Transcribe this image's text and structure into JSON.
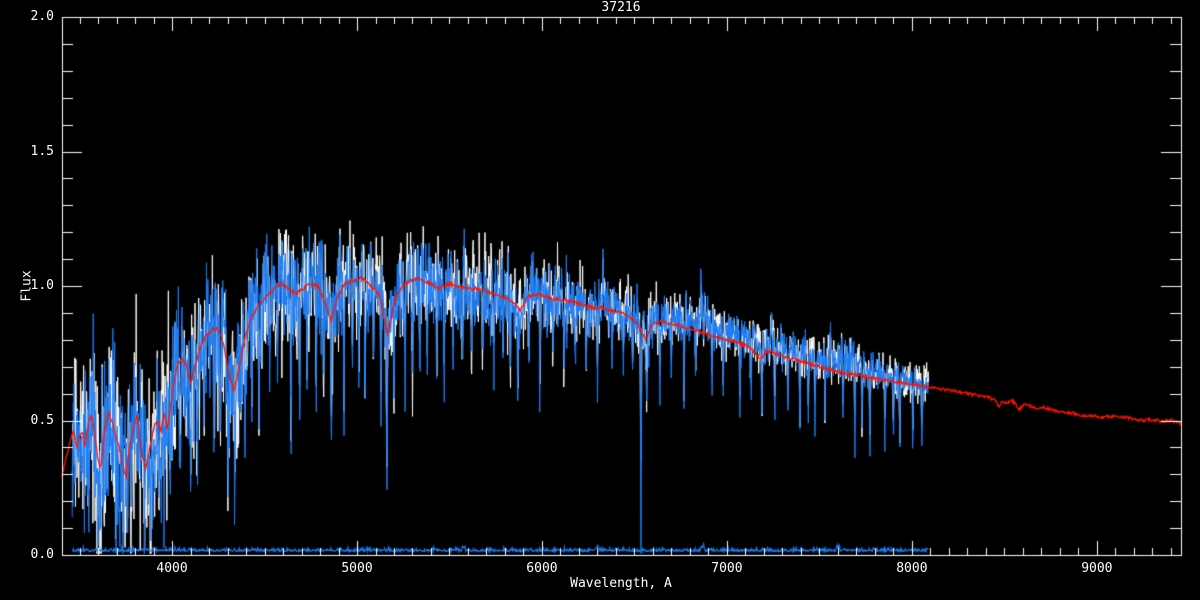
{
  "chart_data": {
    "type": "line",
    "title": "37216",
    "xlabel": "Wavelength, A",
    "ylabel": "Flux",
    "xlim": [
      3405,
      9455
    ],
    "ylim": [
      0.0,
      2.0
    ],
    "grid": false,
    "legend": "none",
    "x_ticks": [
      {
        "value": 4000,
        "label": "4000"
      },
      {
        "value": 5000,
        "label": "5000"
      },
      {
        "value": 6000,
        "label": "6000"
      },
      {
        "value": 7000,
        "label": "7000"
      },
      {
        "value": 8000,
        "label": "8000"
      },
      {
        "value": 9000,
        "label": "9000"
      }
    ],
    "y_ticks": [
      {
        "value": 0.0,
        "label": "0.0"
      },
      {
        "value": 0.5,
        "label": "0.5"
      },
      {
        "value": 1.0,
        "label": "1.0"
      },
      {
        "value": 1.5,
        "label": "1.5"
      },
      {
        "value": 2.0,
        "label": "2.0"
      }
    ],
    "x_minor_step": 100,
    "y_minor_step": 0.1,
    "colors": {
      "background": "#000000",
      "axis": "#ffffff",
      "observed": "#1b7cf5",
      "raw": "#ffffff",
      "template": "#ff1400",
      "error": "#1b7cf5"
    },
    "series": [
      {
        "name": "observed spectrum",
        "color": "#1b7cf5",
        "style": "noisy",
        "range": [
          3460,
          8090
        ]
      },
      {
        "name": "raw spectrum",
        "color": "#ffffff",
        "style": "noisy",
        "range": [
          3460,
          8090
        ]
      },
      {
        "name": "template fit",
        "color": "#ff1400",
        "style": "smooth",
        "range": [
          3405,
          9455
        ]
      },
      {
        "name": "error spectrum",
        "color": "#1b7cf5",
        "style": "flat near zero",
        "range": [
          3460,
          8090
        ],
        "level": 0.013
      }
    ],
    "template_points": [
      [
        3405,
        0.29
      ],
      [
        3430,
        0.37
      ],
      [
        3455,
        0.44
      ],
      [
        3470,
        0.46
      ],
      [
        3485,
        0.4
      ],
      [
        3500,
        0.44
      ],
      [
        3515,
        0.46
      ],
      [
        3530,
        0.4
      ],
      [
        3550,
        0.5
      ],
      [
        3565,
        0.52
      ],
      [
        3580,
        0.46
      ],
      [
        3600,
        0.35
      ],
      [
        3615,
        0.32
      ],
      [
        3635,
        0.46
      ],
      [
        3655,
        0.53
      ],
      [
        3675,
        0.5
      ],
      [
        3695,
        0.44
      ],
      [
        3715,
        0.4
      ],
      [
        3735,
        0.33
      ],
      [
        3752,
        0.29
      ],
      [
        3770,
        0.4
      ],
      [
        3790,
        0.47
      ],
      [
        3812,
        0.52
      ],
      [
        3835,
        0.38
      ],
      [
        3858,
        0.32
      ],
      [
        3880,
        0.4
      ],
      [
        3905,
        0.48
      ],
      [
        3920,
        0.5
      ],
      [
        3940,
        0.46
      ],
      [
        3958,
        0.53
      ],
      [
        3975,
        0.47
      ],
      [
        4000,
        0.59
      ],
      [
        4025,
        0.7
      ],
      [
        4050,
        0.73
      ],
      [
        4075,
        0.71
      ],
      [
        4100,
        0.64
      ],
      [
        4125,
        0.7
      ],
      [
        4150,
        0.77
      ],
      [
        4180,
        0.81
      ],
      [
        4215,
        0.84
      ],
      [
        4250,
        0.84
      ],
      [
        4280,
        0.78
      ],
      [
        4305,
        0.68
      ],
      [
        4335,
        0.61
      ],
      [
        4365,
        0.7
      ],
      [
        4400,
        0.83
      ],
      [
        4435,
        0.89
      ],
      [
        4470,
        0.93
      ],
      [
        4510,
        0.96
      ],
      [
        4550,
        0.99
      ],
      [
        4590,
        1.01
      ],
      [
        4630,
        0.99
      ],
      [
        4670,
        0.97
      ],
      [
        4710,
        0.99
      ],
      [
        4750,
        1.01
      ],
      [
        4790,
        1.0
      ],
      [
        4825,
        0.94
      ],
      [
        4861,
        0.87
      ],
      [
        4895,
        0.96
      ],
      [
        4935,
        1.01
      ],
      [
        4980,
        1.02
      ],
      [
        5030,
        1.03
      ],
      [
        5075,
        1.0
      ],
      [
        5120,
        0.97
      ],
      [
        5165,
        0.82
      ],
      [
        5205,
        0.95
      ],
      [
        5245,
        1.0
      ],
      [
        5290,
        1.02
      ],
      [
        5340,
        1.03
      ],
      [
        5390,
        1.01
      ],
      [
        5440,
        0.99
      ],
      [
        5490,
        1.01
      ],
      [
        5540,
        1.0
      ],
      [
        5590,
        0.99
      ],
      [
        5640,
        0.99
      ],
      [
        5690,
        0.98
      ],
      [
        5740,
        0.97
      ],
      [
        5790,
        0.96
      ],
      [
        5840,
        0.94
      ],
      [
        5885,
        0.91
      ],
      [
        5925,
        0.96
      ],
      [
        5970,
        0.97
      ],
      [
        6020,
        0.96
      ],
      [
        6070,
        0.95
      ],
      [
        6120,
        0.95
      ],
      [
        6170,
        0.94
      ],
      [
        6220,
        0.93
      ],
      [
        6270,
        0.92
      ],
      [
        6320,
        0.92
      ],
      [
        6370,
        0.91
      ],
      [
        6420,
        0.9
      ],
      [
        6470,
        0.89
      ],
      [
        6515,
        0.86
      ],
      [
        6560,
        0.8
      ],
      [
        6600,
        0.86
      ],
      [
        6650,
        0.87
      ],
      [
        6700,
        0.86
      ],
      [
        6750,
        0.85
      ],
      [
        6800,
        0.84
      ],
      [
        6850,
        0.83
      ],
      [
        6900,
        0.82
      ],
      [
        6950,
        0.81
      ],
      [
        7000,
        0.8
      ],
      [
        7050,
        0.79
      ],
      [
        7100,
        0.78
      ],
      [
        7140,
        0.76
      ],
      [
        7180,
        0.73
      ],
      [
        7220,
        0.76
      ],
      [
        7260,
        0.75
      ],
      [
        7300,
        0.74
      ],
      [
        7350,
        0.73
      ],
      [
        7400,
        0.72
      ],
      [
        7450,
        0.71
      ],
      [
        7500,
        0.7
      ],
      [
        7550,
        0.69
      ],
      [
        7600,
        0.68
      ],
      [
        7650,
        0.675
      ],
      [
        7700,
        0.67
      ],
      [
        7750,
        0.66
      ],
      [
        7800,
        0.655
      ],
      [
        7850,
        0.65
      ],
      [
        7900,
        0.645
      ],
      [
        7950,
        0.64
      ],
      [
        8000,
        0.635
      ],
      [
        8050,
        0.63
      ],
      [
        8100,
        0.625
      ],
      [
        8140,
        0.62
      ],
      [
        8180,
        0.615
      ],
      [
        8220,
        0.61
      ],
      [
        8260,
        0.605
      ],
      [
        8300,
        0.6
      ],
      [
        8340,
        0.595
      ],
      [
        8380,
        0.59
      ],
      [
        8420,
        0.585
      ],
      [
        8450,
        0.575
      ],
      [
        8470,
        0.55
      ],
      [
        8490,
        0.575
      ],
      [
        8510,
        0.56
      ],
      [
        8530,
        0.575
      ],
      [
        8560,
        0.565
      ],
      [
        8580,
        0.54
      ],
      [
        8610,
        0.56
      ],
      [
        8640,
        0.555
      ],
      [
        8670,
        0.545
      ],
      [
        8700,
        0.55
      ],
      [
        8730,
        0.545
      ],
      [
        8760,
        0.54
      ],
      [
        8790,
        0.535
      ],
      [
        8820,
        0.53
      ],
      [
        8850,
        0.528
      ],
      [
        8880,
        0.527
      ],
      [
        8910,
        0.52
      ],
      [
        8940,
        0.518
      ],
      [
        8970,
        0.515
      ],
      [
        9000,
        0.515
      ],
      [
        9040,
        0.512
      ],
      [
        9080,
        0.515
      ],
      [
        9120,
        0.51
      ],
      [
        9160,
        0.512
      ],
      [
        9200,
        0.505
      ],
      [
        9240,
        0.5
      ],
      [
        9280,
        0.503
      ],
      [
        9320,
        0.5
      ],
      [
        9360,
        0.497
      ],
      [
        9400,
        0.5
      ],
      [
        9455,
        0.49
      ]
    ],
    "noise_profile": [
      [
        3460,
        0.17
      ],
      [
        3600,
        0.18
      ],
      [
        3800,
        0.17
      ],
      [
        4000,
        0.16
      ],
      [
        4200,
        0.14
      ],
      [
        4400,
        0.13
      ],
      [
        4600,
        0.12
      ],
      [
        4800,
        0.11
      ],
      [
        5000,
        0.1
      ],
      [
        5200,
        0.1
      ],
      [
        5400,
        0.09
      ],
      [
        5600,
        0.085
      ],
      [
        5800,
        0.08
      ],
      [
        6000,
        0.07
      ],
      [
        6200,
        0.065
      ],
      [
        6400,
        0.06
      ],
      [
        6600,
        0.055
      ],
      [
        6800,
        0.05
      ],
      [
        7000,
        0.045
      ],
      [
        7200,
        0.045
      ],
      [
        7400,
        0.04
      ],
      [
        7600,
        0.045
      ],
      [
        7800,
        0.038
      ],
      [
        8000,
        0.032
      ],
      [
        8090,
        0.03
      ]
    ],
    "white_offset": [
      [
        3460,
        -0.02
      ],
      [
        3700,
        -0.02
      ],
      [
        4000,
        -0.01
      ],
      [
        4300,
        -0.02
      ],
      [
        4600,
        0.0
      ],
      [
        5000,
        0.01
      ],
      [
        5400,
        0.0
      ],
      [
        5800,
        0.0
      ],
      [
        6200,
        0.0
      ],
      [
        6600,
        0.01
      ],
      [
        6860,
        0.05
      ],
      [
        7000,
        0.02
      ],
      [
        7180,
        0.04
      ],
      [
        7300,
        0.02
      ],
      [
        7500,
        0.03
      ],
      [
        7620,
        0.05
      ],
      [
        7800,
        0.02
      ],
      [
        8000,
        0.01
      ],
      [
        8090,
        0.01
      ]
    ],
    "absorption_lines": [
      [
        3550,
        0.22
      ],
      [
        3594,
        0.33
      ],
      [
        3640,
        0.2
      ],
      [
        3697,
        0.3
      ],
      [
        3735,
        0.25
      ],
      [
        3778,
        0.36
      ],
      [
        3820,
        0.22
      ],
      [
        3850,
        0.25
      ],
      [
        3886,
        0.3
      ],
      [
        3925,
        0.22
      ],
      [
        3957,
        0.3
      ],
      [
        3990,
        0.2
      ],
      [
        4043,
        0.35
      ],
      [
        4075,
        0.25
      ],
      [
        4101,
        0.3
      ],
      [
        4135,
        0.48
      ],
      [
        4172,
        0.25
      ],
      [
        4227,
        0.42
      ],
      [
        4260,
        0.3
      ],
      [
        4303,
        0.45
      ],
      [
        4340,
        0.35
      ],
      [
        4395,
        0.45
      ],
      [
        4430,
        0.3
      ],
      [
        4470,
        0.55
      ],
      [
        4530,
        0.3
      ],
      [
        4570,
        0.35
      ],
      [
        4643,
        0.55
      ],
      [
        4690,
        0.35
      ],
      [
        4730,
        0.3
      ],
      [
        4780,
        0.35
      ],
      [
        4820,
        0.3
      ],
      [
        4861,
        0.55
      ],
      [
        4930,
        0.6
      ],
      [
        4975,
        0.35
      ],
      [
        5010,
        0.3
      ],
      [
        5043,
        0.55
      ],
      [
        5090,
        0.35
      ],
      [
        5130,
        0.4
      ],
      [
        5162,
        0.6
      ],
      [
        5200,
        0.35
      ],
      [
        5260,
        0.45
      ],
      [
        5300,
        0.35
      ],
      [
        5340,
        0.42
      ],
      [
        5380,
        0.3
      ],
      [
        5430,
        0.35
      ],
      [
        5470,
        0.4
      ],
      [
        5520,
        0.3
      ],
      [
        5570,
        0.4
      ],
      [
        5620,
        0.3
      ],
      [
        5680,
        0.28
      ],
      [
        5740,
        0.3
      ],
      [
        5790,
        0.25
      ],
      [
        5830,
        0.28
      ],
      [
        5870,
        0.4
      ],
      [
        5930,
        0.25
      ],
      [
        5989,
        0.35
      ],
      [
        6060,
        0.28
      ],
      [
        6119,
        0.3
      ],
      [
        6180,
        0.22
      ],
      [
        6240,
        0.25
      ],
      [
        6300,
        0.28
      ],
      [
        6380,
        0.2
      ],
      [
        6440,
        0.22
      ],
      [
        6490,
        0.25
      ],
      [
        6535,
        0.8
      ],
      [
        6565,
        0.3
      ],
      [
        6638,
        0.28
      ],
      [
        6700,
        0.22
      ],
      [
        6768,
        0.3
      ],
      [
        6830,
        0.2
      ],
      [
        6919,
        0.28
      ],
      [
        6980,
        0.22
      ],
      [
        7070,
        0.3
      ],
      [
        7130,
        0.22
      ],
      [
        7189,
        0.28
      ],
      [
        7259,
        0.28
      ],
      [
        7330,
        0.22
      ],
      [
        7395,
        0.3
      ],
      [
        7440,
        0.25
      ],
      [
        7476,
        0.28
      ],
      [
        7530,
        0.2
      ],
      [
        7627,
        0.25
      ],
      [
        7692,
        0.28
      ],
      [
        7730,
        0.2
      ],
      [
        7773,
        0.3
      ],
      [
        7854,
        0.25
      ],
      [
        7900,
        0.2
      ],
      [
        7935,
        0.25
      ],
      [
        8005,
        0.22
      ],
      [
        8054,
        0.2
      ]
    ],
    "emission_lines": [
      [
        4610,
        0.08
      ],
      [
        5577,
        0.1
      ],
      [
        6330,
        0.17
      ],
      [
        6860,
        0.17
      ],
      [
        6880,
        0.08
      ],
      [
        7150,
        0.06
      ],
      [
        7240,
        0.08
      ],
      [
        7560,
        0.08
      ],
      [
        7620,
        0.06
      ]
    ],
    "error_bumps": [
      [
        5577,
        0.012
      ],
      [
        6300,
        0.012
      ],
      [
        6870,
        0.015
      ],
      [
        7600,
        0.015
      ]
    ],
    "observed_range": [
      3460,
      8090
    ],
    "template_range": [
      3405,
      9455
    ],
    "error_level": 0.013,
    "noise_seed": 1234567,
    "sample_step": 2
  }
}
